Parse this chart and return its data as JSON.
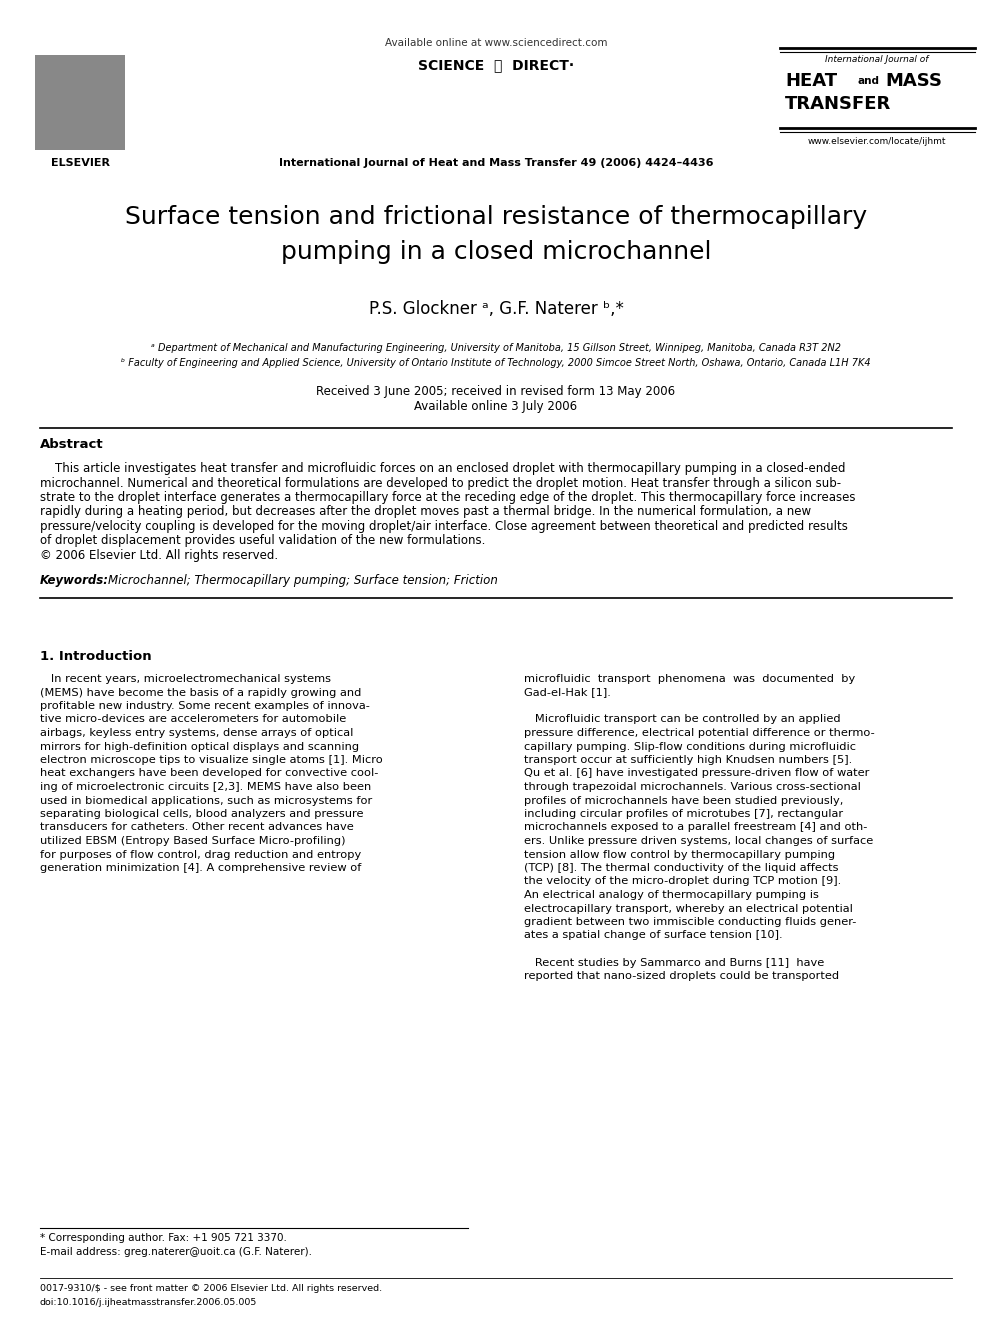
{
  "background_color": "#ffffff",
  "page_width": 9.92,
  "page_height": 13.23,
  "dpi": 100,
  "header": {
    "available_online": "Available online at www.sciencedirect.com",
    "sciencedirect": "SCIENCE  ⓓ  DIRECT·",
    "journal_info": "International Journal of Heat and Mass Transfer 49 (2006) 4424–4436",
    "website": "www.elsevier.com/locate/ijhmt",
    "journal_name_line1": "International Journal of",
    "journal_name_heat": "HEAT",
    "journal_name_and": "and",
    "journal_name_mass": "MASS",
    "journal_name_transfer": "TRANSFER"
  },
  "title_line1": "Surface tension and frictional resistance of thermocapillary",
  "title_line2": "pumping in a closed microchannel",
  "authors": "P.S. Glockner ᵃ, G.F. Naterer ᵇ,*",
  "affil_a": "ᵃ Department of Mechanical and Manufacturing Engineering, University of Manitoba, 15 Gillson Street, Winnipeg, Manitoba, Canada R3T 2N2",
  "affil_b": "ᵇ Faculty of Engineering and Applied Science, University of Ontario Institute of Technology, 2000 Simcoe Street North, Oshawa, Ontario, Canada L1H 7K4",
  "received": "Received 3 June 2005; received in revised form 13 May 2006",
  "available_online2": "Available online 3 July 2006",
  "abstract_label": "Abstract",
  "abstract_body": "    This article investigates heat transfer and microfluidic forces on an enclosed droplet with thermocapillary pumping in a closed-ended microchannel. Numerical and theoretical formulations are developed to predict the droplet motion. Heat transfer through a silicon substrate to the droplet interface generates a thermocapillary force at the receding edge of the droplet. This thermocapillary force increases rapidly during a heating period, but decreases after the droplet moves past a thermal bridge. In the numerical formulation, a new pressure/velocity coupling is developed for the moving droplet/air interface. Close agreement between theoretical and predicted results of droplet displacement provides useful validation of the new formulations.",
  "copyright": "© 2006 Elsevier Ltd. All rights reserved.",
  "keywords_label": "Keywords:",
  "keywords_text": "Microchannel; Thermocapillary pumping; Surface tension; Friction",
  "section1_title": "1. Introduction",
  "intro_left_lines": [
    "   In recent years, microelectromechanical systems",
    "(MEMS) have become the basis of a rapidly growing and",
    "profitable new industry. Some recent examples of innova-",
    "tive micro-devices are accelerometers for automobile",
    "airbags, keyless entry systems, dense arrays of optical",
    "mirrors for high-definition optical displays and scanning",
    "electron microscope tips to visualize single atoms [1]. Micro",
    "heat exchangers have been developed for convective cool-",
    "ing of microelectronic circuits [2,3]. MEMS have also been",
    "used in biomedical applications, such as microsystems for",
    "separating biological cells, blood analyzers and pressure",
    "transducers for catheters. Other recent advances have",
    "utilized EBSM (Entropy Based Surface Micro-profiling)",
    "for purposes of flow control, drag reduction and entropy",
    "generation minimization [4]. A comprehensive review of"
  ],
  "intro_right_lines": [
    "microfluidic  transport  phenomena  was  documented  by",
    "Gad-el-Hak [1].",
    "",
    "   Microfluidic transport can be controlled by an applied",
    "pressure difference, electrical potential difference or thermo-",
    "capillary pumping. Slip-flow conditions during microfluidic",
    "transport occur at sufficiently high Knudsen numbers [5].",
    "Qu et al. [6] have investigated pressure-driven flow of water",
    "through trapezoidal microchannels. Various cross-sectional",
    "profiles of microchannels have been studied previously,",
    "including circular profiles of microtubes [7], rectangular",
    "microchannels exposed to a parallel freestream [4] and oth-",
    "ers. Unlike pressure driven systems, local changes of surface",
    "tension allow flow control by thermocapillary pumping",
    "(TCP) [8]. The thermal conductivity of the liquid affects",
    "the velocity of the micro-droplet during TCP motion [9].",
    "An electrical analogy of thermocapillary pumping is",
    "electrocapillary transport, whereby an electrical potential",
    "gradient between two immiscible conducting fluids gener-",
    "ates a spatial change of surface tension [10].",
    "",
    "   Recent studies by Sammarco and Burns [11]  have",
    "reported that nano-sized droplets could be transported"
  ],
  "footnote_star": "* Corresponding author. Fax: +1 905 721 3370.",
  "footnote_email": "E-mail address: greg.naterer@uoit.ca (G.F. Naterer).",
  "bottom_line1": "0017-9310/$ - see front matter © 2006 Elsevier Ltd. All rights reserved.",
  "bottom_line2": "doi:10.1016/j.ijheatmasstransfer.2006.05.005"
}
